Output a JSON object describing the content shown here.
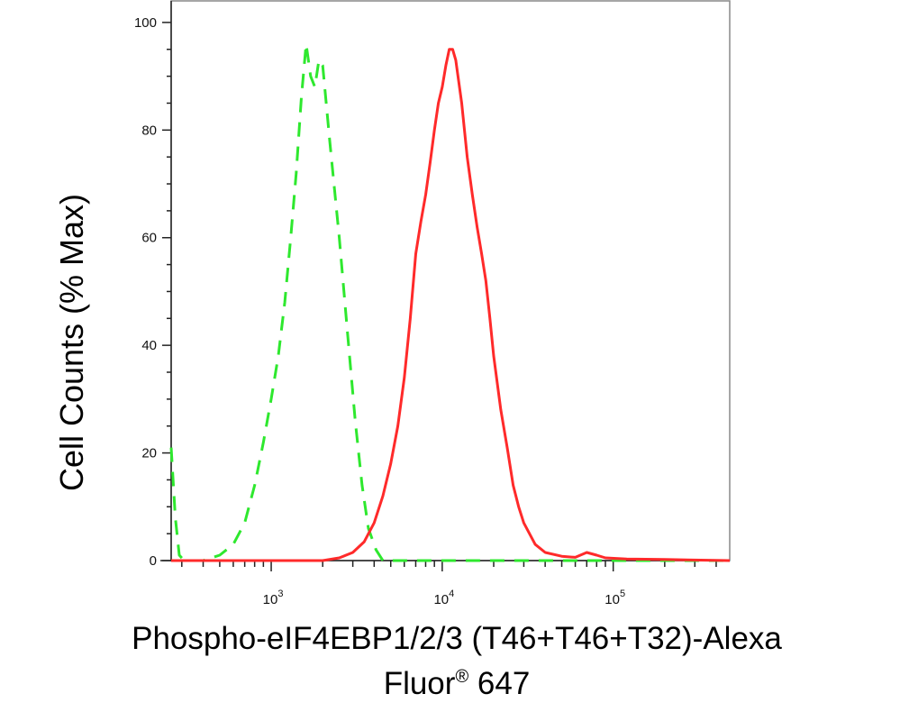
{
  "chart_data": {
    "type": "line",
    "xscale": "log",
    "xlim": [
      260,
      480000
    ],
    "ylim": [
      0,
      104
    ],
    "yticks": [
      0,
      20,
      40,
      60,
      80,
      100
    ],
    "xticks_major": [
      1000,
      10000,
      100000
    ],
    "xtick_labels": [
      {
        "base": "10",
        "exp": "3"
      },
      {
        "base": "10",
        "exp": "4"
      },
      {
        "base": "10",
        "exp": "5"
      }
    ],
    "ylabel": "Cell Counts (% Max)",
    "xlabel_line1": "Phospho-eIF4EBP1/2/3 (T46+T46+T32)-Alexa",
    "xlabel_line2_a": "Fluor",
    "xlabel_line2_sup": "®",
    "xlabel_line2_b": " 647",
    "grid": false,
    "series": [
      {
        "color": "#2ee82e",
        "style": "dashed",
        "points": [
          [
            260,
            21
          ],
          [
            275,
            8
          ],
          [
            290,
            1
          ],
          [
            310,
            0
          ],
          [
            400,
            0
          ],
          [
            500,
            1
          ],
          [
            600,
            3
          ],
          [
            700,
            7
          ],
          [
            800,
            14
          ],
          [
            900,
            22
          ],
          [
            1000,
            30
          ],
          [
            1100,
            38
          ],
          [
            1200,
            48
          ],
          [
            1300,
            60
          ],
          [
            1400,
            72
          ],
          [
            1500,
            86
          ],
          [
            1600,
            96
          ],
          [
            1700,
            90
          ],
          [
            1800,
            88
          ],
          [
            1900,
            93
          ],
          [
            2000,
            92
          ],
          [
            2200,
            78
          ],
          [
            2500,
            60
          ],
          [
            2800,
            42
          ],
          [
            3100,
            26
          ],
          [
            3400,
            14
          ],
          [
            3700,
            6
          ],
          [
            4100,
            2
          ],
          [
            4500,
            0
          ],
          [
            6000,
            0
          ],
          [
            20000,
            0
          ],
          [
            100000,
            0
          ],
          [
            480000,
            0
          ]
        ]
      },
      {
        "color": "#ff2a2a",
        "style": "solid",
        "points": [
          [
            260,
            0
          ],
          [
            1000,
            0
          ],
          [
            2000,
            0
          ],
          [
            2500,
            0.5
          ],
          [
            3000,
            1.5
          ],
          [
            3500,
            3.5
          ],
          [
            4000,
            7
          ],
          [
            4500,
            12
          ],
          [
            5000,
            18
          ],
          [
            5500,
            25
          ],
          [
            6000,
            34
          ],
          [
            6500,
            45
          ],
          [
            7000,
            57
          ],
          [
            7500,
            63
          ],
          [
            8000,
            68
          ],
          [
            8500,
            74
          ],
          [
            9000,
            80
          ],
          [
            9500,
            85
          ],
          [
            10000,
            88
          ],
          [
            10500,
            92
          ],
          [
            11000,
            95
          ],
          [
            11500,
            95
          ],
          [
            12000,
            93
          ],
          [
            13000,
            85
          ],
          [
            14000,
            75
          ],
          [
            15000,
            68
          ],
          [
            16000,
            62
          ],
          [
            17000,
            57
          ],
          [
            18000,
            52
          ],
          [
            19000,
            45
          ],
          [
            20000,
            38
          ],
          [
            22000,
            28
          ],
          [
            24000,
            21
          ],
          [
            26000,
            14
          ],
          [
            28000,
            10
          ],
          [
            30000,
            7
          ],
          [
            35000,
            3
          ],
          [
            40000,
            1.5
          ],
          [
            50000,
            0.8
          ],
          [
            60000,
            0.6
          ],
          [
            70000,
            1.5
          ],
          [
            80000,
            1
          ],
          [
            90000,
            0.5
          ],
          [
            120000,
            0.3
          ],
          [
            200000,
            0.2
          ],
          [
            480000,
            0
          ]
        ]
      }
    ]
  }
}
